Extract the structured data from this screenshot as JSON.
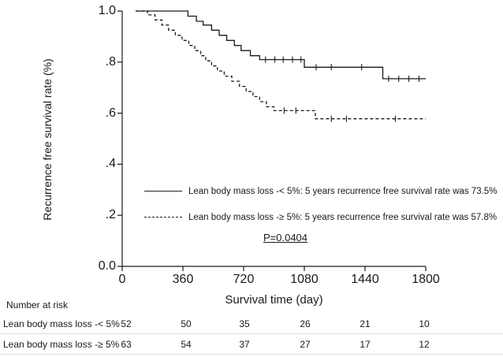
{
  "chart_data": {
    "type": "line",
    "subtype": "kaplan-meier-step",
    "title": "",
    "xlabel": "Survival time (day)",
    "ylabel": "Recurrence free survival rate (%)",
    "xlim": [
      0,
      1800
    ],
    "ylim": [
      0,
      1.0
    ],
    "xticks": [
      "0",
      "360",
      "720",
      "1080",
      "1440",
      "1800"
    ],
    "xtick_values": [
      0,
      360,
      720,
      1080,
      1440,
      1800
    ],
    "yticks": [
      "0.0",
      ".2",
      ".4",
      ".6",
      ".8",
      "1.0"
    ],
    "ytick_values": [
      0,
      0.2,
      0.4,
      0.6,
      0.8,
      1.0
    ],
    "grid": false,
    "legend_position": "inside-lower-center",
    "pvalue": "P=0.0404",
    "line_color": "#1a1a1a",
    "series": [
      {
        "name": "lean-body-mass-loss-lt-5pct",
        "label": "Lean body mass loss -< 5%: 5 years recurrence free survival rate was 73.5%",
        "style": "solid",
        "five_year_rate_pct": 73.5,
        "points": [
          [
            80,
            1.0
          ],
          [
            390,
            1.0
          ],
          [
            390,
            0.98
          ],
          [
            440,
            0.98
          ],
          [
            440,
            0.96
          ],
          [
            480,
            0.96
          ],
          [
            480,
            0.945
          ],
          [
            530,
            0.945
          ],
          [
            530,
            0.925
          ],
          [
            575,
            0.925
          ],
          [
            575,
            0.905
          ],
          [
            620,
            0.905
          ],
          [
            620,
            0.885
          ],
          [
            665,
            0.885
          ],
          [
            665,
            0.865
          ],
          [
            705,
            0.865
          ],
          [
            705,
            0.845
          ],
          [
            760,
            0.845
          ],
          [
            760,
            0.825
          ],
          [
            815,
            0.825
          ],
          [
            815,
            0.81
          ],
          [
            1080,
            0.81
          ],
          [
            1080,
            0.78
          ],
          [
            1545,
            0.78
          ],
          [
            1545,
            0.735
          ],
          [
            1800,
            0.735
          ]
        ],
        "censor_marks": [
          [
            850,
            0.81
          ],
          [
            905,
            0.81
          ],
          [
            955,
            0.81
          ],
          [
            1010,
            0.81
          ],
          [
            1060,
            0.81
          ],
          [
            1150,
            0.78
          ],
          [
            1240,
            0.78
          ],
          [
            1420,
            0.78
          ],
          [
            1580,
            0.735
          ],
          [
            1640,
            0.735
          ],
          [
            1700,
            0.735
          ],
          [
            1760,
            0.735
          ]
        ]
      },
      {
        "name": "lean-body-mass-loss-ge-5pct",
        "label": "Lean body mass loss -≥ 5%: 5 years recurrence free survival rate was 57.8%",
        "style": "dashed",
        "five_year_rate_pct": 57.8,
        "points": [
          [
            80,
            1.0
          ],
          [
            150,
            1.0
          ],
          [
            150,
            0.985
          ],
          [
            195,
            0.985
          ],
          [
            195,
            0.965
          ],
          [
            235,
            0.965
          ],
          [
            235,
            0.945
          ],
          [
            275,
            0.945
          ],
          [
            275,
            0.925
          ],
          [
            315,
            0.925
          ],
          [
            315,
            0.905
          ],
          [
            355,
            0.905
          ],
          [
            355,
            0.885
          ],
          [
            395,
            0.885
          ],
          [
            395,
            0.865
          ],
          [
            430,
            0.865
          ],
          [
            430,
            0.845
          ],
          [
            465,
            0.845
          ],
          [
            465,
            0.825
          ],
          [
            495,
            0.825
          ],
          [
            495,
            0.805
          ],
          [
            530,
            0.805
          ],
          [
            530,
            0.785
          ],
          [
            565,
            0.785
          ],
          [
            565,
            0.765
          ],
          [
            605,
            0.765
          ],
          [
            605,
            0.745
          ],
          [
            650,
            0.745
          ],
          [
            650,
            0.725
          ],
          [
            695,
            0.725
          ],
          [
            695,
            0.705
          ],
          [
            735,
            0.705
          ],
          [
            735,
            0.685
          ],
          [
            775,
            0.685
          ],
          [
            775,
            0.665
          ],
          [
            815,
            0.665
          ],
          [
            815,
            0.645
          ],
          [
            855,
            0.645
          ],
          [
            855,
            0.625
          ],
          [
            900,
            0.625
          ],
          [
            900,
            0.61
          ],
          [
            1145,
            0.61
          ],
          [
            1145,
            0.578
          ],
          [
            1800,
            0.578
          ]
        ],
        "censor_marks": [
          [
            960,
            0.61
          ],
          [
            1030,
            0.61
          ],
          [
            1240,
            0.578
          ],
          [
            1330,
            0.578
          ],
          [
            1620,
            0.578
          ]
        ]
      }
    ]
  },
  "number_at_risk": {
    "title": "Number at risk",
    "rows": [
      {
        "label": "Lean body mass loss -< 5%",
        "counts": [
          "52",
          "50",
          "35",
          "26",
          "21",
          "10"
        ]
      },
      {
        "label": "Lean body mass loss -≥ 5%",
        "counts": [
          "63",
          "54",
          "37",
          "27",
          "17",
          "12"
        ]
      }
    ]
  }
}
